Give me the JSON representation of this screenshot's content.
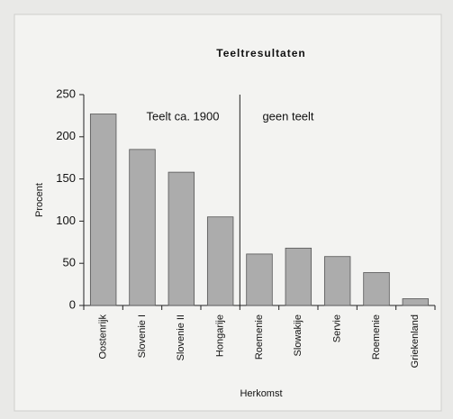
{
  "chart_data": {
    "type": "bar",
    "title": "Teeltresultaten",
    "x_label": "Herkomst",
    "y_label": "Procent",
    "categories": [
      "Oostenrijk",
      "Slovenie I",
      "Slovenie II",
      "Hongarije",
      "Roemenie",
      "Slowakije",
      "Servie",
      "Roemenie",
      "Griekenland"
    ],
    "values": [
      227,
      185,
      158,
      105,
      61,
      68,
      58,
      39,
      8
    ],
    "color": "#acacac",
    "ylim": [
      0,
      250
    ],
    "yticks": [
      0,
      50,
      100,
      150,
      200,
      250
    ],
    "annotations": [
      "Teelt ca. 1900",
      "geen teelt"
    ]
  }
}
